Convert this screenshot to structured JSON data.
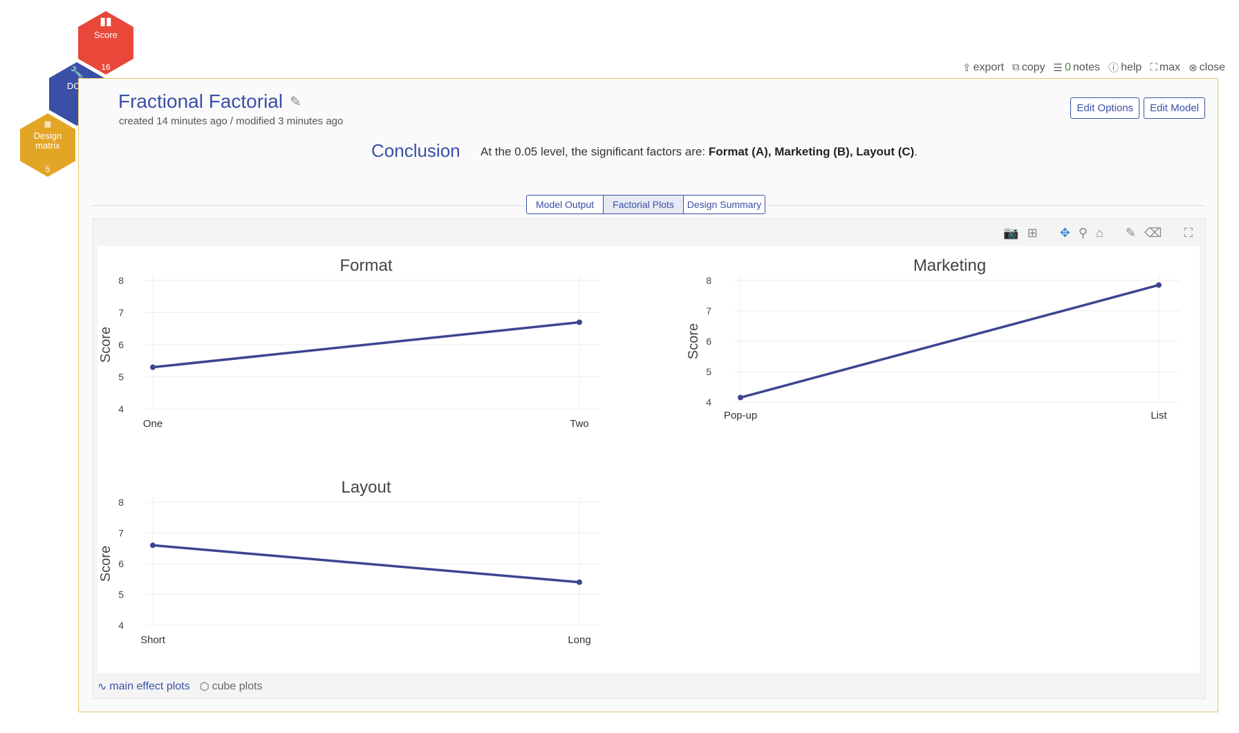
{
  "hexes": [
    {
      "label": "Score",
      "count": "16",
      "icon": "bar-chart-icon",
      "color": "#e8473a"
    },
    {
      "label": "DOE",
      "count": "",
      "icon": "wrench-icon",
      "color": "#3a4fa6"
    },
    {
      "label": "Design matrix",
      "count": "5",
      "icon": "matrix-icon",
      "color": "#e3a526"
    }
  ],
  "topbar": {
    "export": "export",
    "copy": "copy",
    "notes_count": "0",
    "notes": "notes",
    "help": "help",
    "max": "max",
    "close": "close"
  },
  "header": {
    "title": "Fractional Factorial",
    "subtitle": "created 14 minutes ago / modified 3 minutes ago",
    "edit_options": "Edit Options",
    "edit_model": "Edit Model"
  },
  "conclusion": {
    "heading": "Conclusion",
    "text": "At the 0.05 level, the significant factors are:",
    "factors": "Format (A), Marketing (B), Layout (C)",
    "end": "."
  },
  "tabs": [
    {
      "label": "Model Output",
      "active": false
    },
    {
      "label": "Factorial Plots",
      "active": true
    },
    {
      "label": "Design Summary",
      "active": false
    }
  ],
  "bottom": {
    "main_effect": "main effect plots",
    "cube": "cube plots"
  },
  "colors": {
    "accent": "#3a4fa6",
    "line": "#3d4591"
  },
  "chart_data": [
    {
      "type": "line",
      "title": "Format",
      "ylabel": "Score",
      "categories": [
        "One",
        "Two"
      ],
      "values": [
        5.3,
        6.7
      ],
      "ylim": [
        4,
        8
      ],
      "yticks": [
        4,
        5,
        6,
        7,
        8
      ]
    },
    {
      "type": "line",
      "title": "Marketing",
      "ylabel": "Score",
      "categories": [
        "Pop-up",
        "List"
      ],
      "values": [
        4.15,
        7.85
      ],
      "ylim": [
        4,
        8
      ],
      "yticks": [
        4,
        5,
        6,
        7,
        8
      ]
    },
    {
      "type": "line",
      "title": "Layout",
      "ylabel": "Score",
      "categories": [
        "Short",
        "Long"
      ],
      "values": [
        6.6,
        5.4
      ],
      "ylim": [
        4,
        8
      ],
      "yticks": [
        4,
        5,
        6,
        7,
        8
      ]
    }
  ]
}
